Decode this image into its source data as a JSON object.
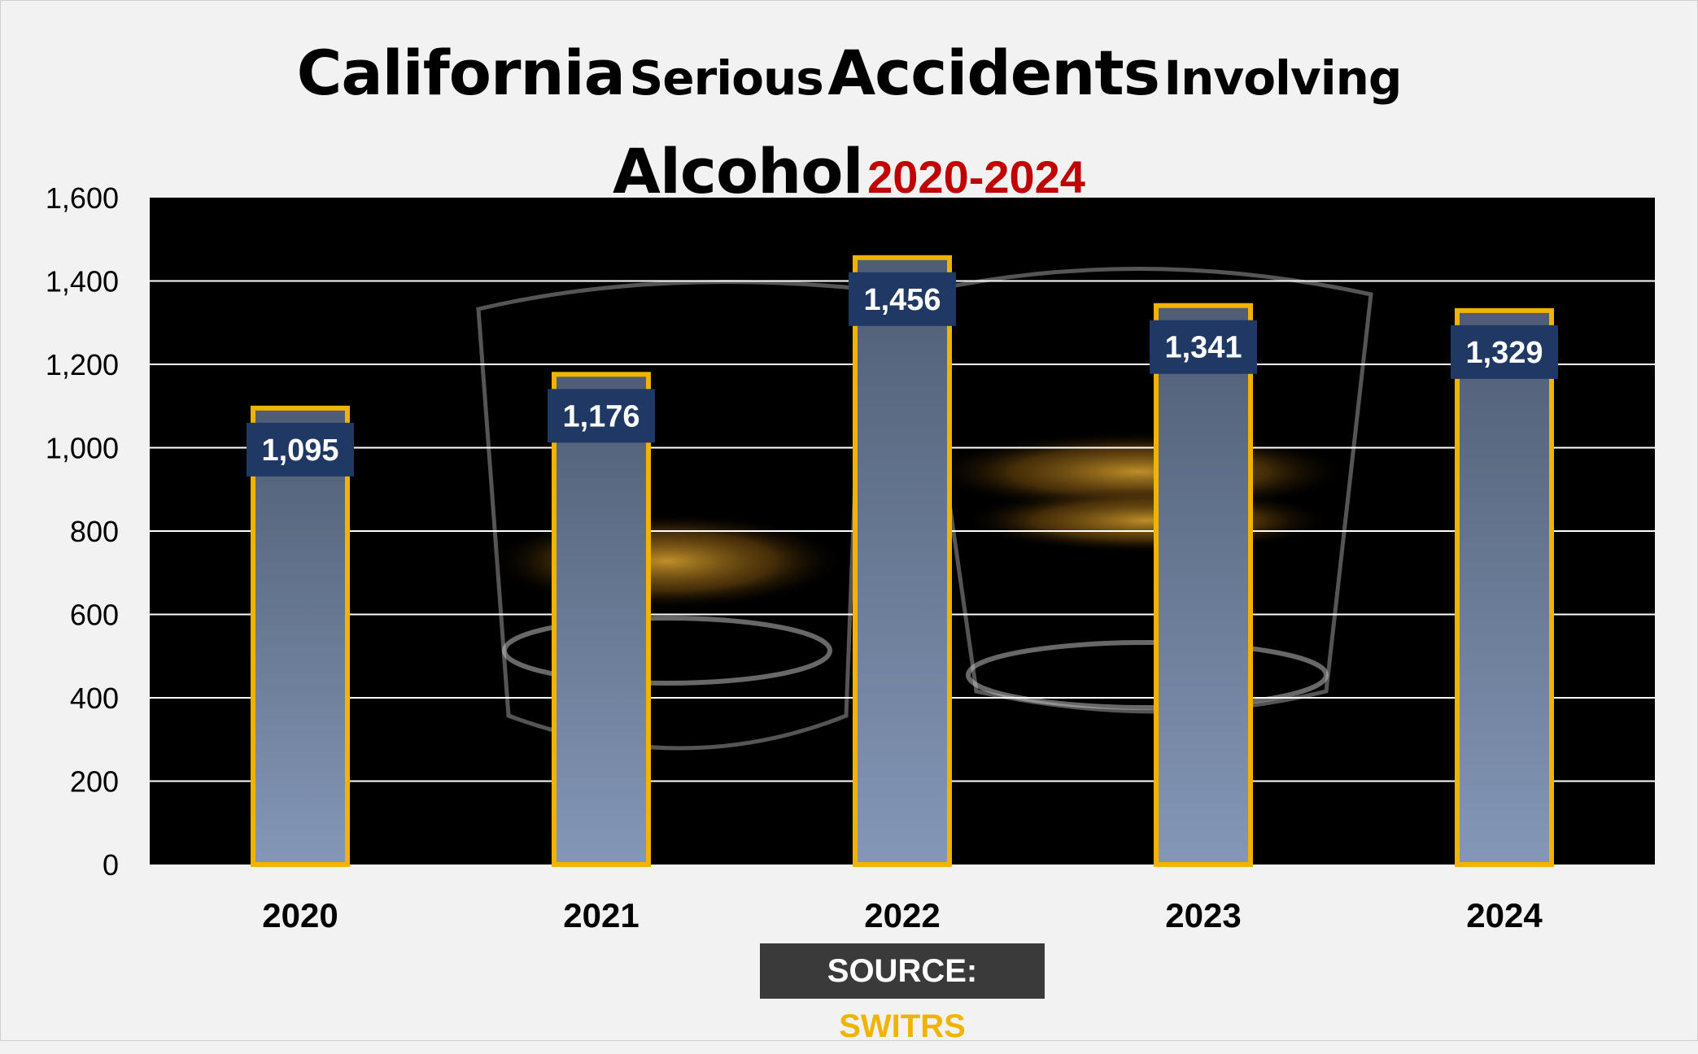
{
  "title": {
    "part1": "California",
    "part2": "Serious",
    "part3": "Accidents",
    "part4": "Involving",
    "part5": "Alcohol",
    "years": "2020-2024"
  },
  "source": {
    "label": "SOURCE:",
    "value": "SWITRS"
  },
  "colors": {
    "plot_background": "#000000",
    "bar_top": "#4e5d73",
    "bar_bottom": "#8497b7",
    "bar_border": "#f0b400",
    "label_box": "#1f3864",
    "gridline": "#ffffff",
    "title_accent": "#c00000"
  },
  "chart_data": {
    "type": "bar",
    "categories": [
      "2020",
      "2021",
      "2022",
      "2023",
      "2024"
    ],
    "values": [
      1095,
      1176,
      1456,
      1341,
      1329
    ],
    "data_labels": [
      "1,095",
      "1,176",
      "1,456",
      "1,341",
      "1,329"
    ],
    "title": "California Serious Accidents Involving Alcohol 2020-2024",
    "xlabel": "",
    "ylabel": "",
    "ylim": [
      0,
      1600
    ],
    "yticks": [
      0,
      200,
      400,
      600,
      800,
      1000,
      1200,
      1400,
      1600
    ],
    "ytick_labels": [
      "0",
      "200",
      "400",
      "600",
      "800",
      "1,000",
      "1,200",
      "1,400",
      "1,600"
    ],
    "grid": true,
    "legend": "none"
  }
}
